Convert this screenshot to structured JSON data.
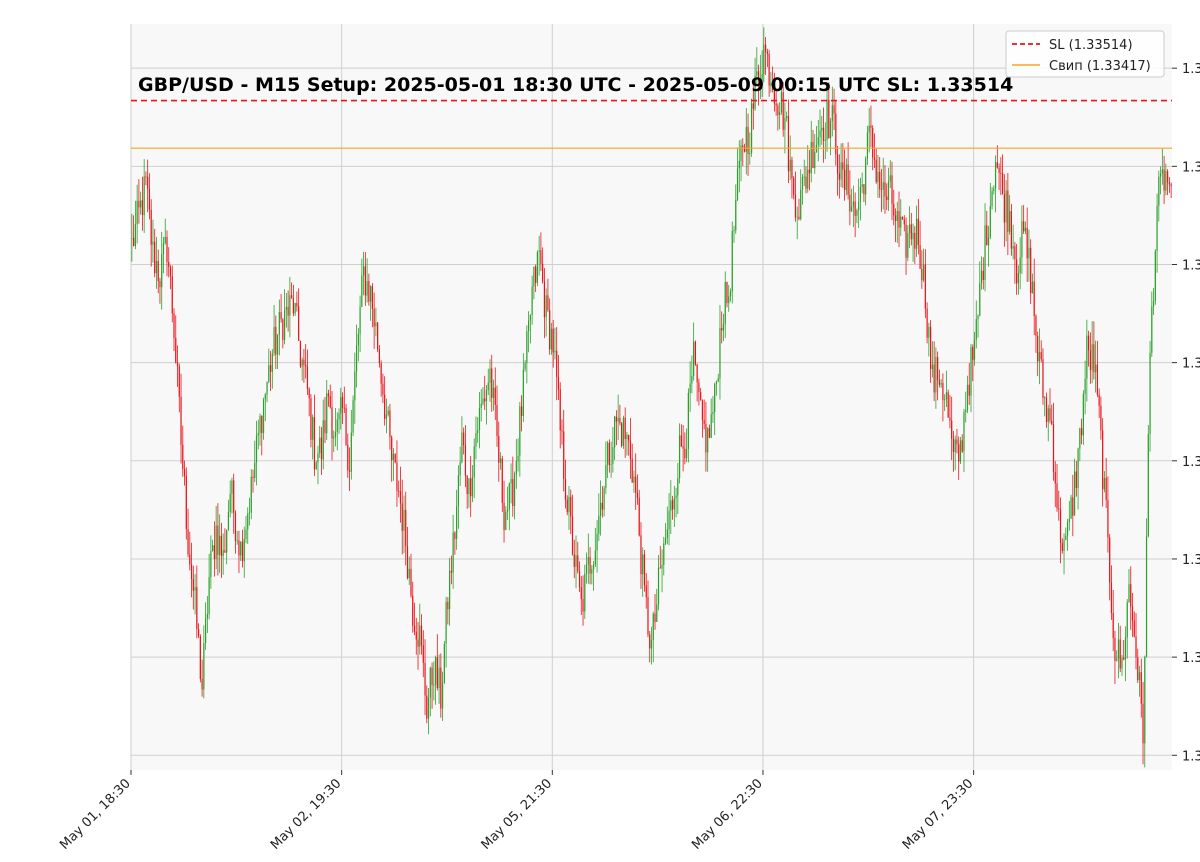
{
  "chart_data": {
    "type": "candlestick",
    "title": "GBP/USD - M15 Setup: 2025-05-01 18:30 UTC - 2025-05-09 00:15 UTC SL: 1.33514",
    "xlabel": "",
    "ylabel": "",
    "grid": true,
    "legend_position": "top-right",
    "x_tick_labels": [
      "May 01, 18:30",
      "May 02, 19:30",
      "May 05, 21:30",
      "May 06, 22:30",
      "May 07, 23:30"
    ],
    "y_tick_labels": [
      "1.3",
      "1.3",
      "1.3",
      "1.3",
      "1.3",
      "1.3",
      "1.3",
      "1.3"
    ],
    "ylim": [
      1.3215,
      1.3367
    ],
    "horizontal_lines": [
      {
        "name": "SL (1.33514)",
        "value": 1.33514,
        "color": "#e8141a",
        "style": "dashed"
      },
      {
        "name": "Свип (1.33417)",
        "value": 1.33417,
        "color": "#f5a623",
        "style": "solid"
      }
    ],
    "colors": {
      "up": "#2ca02c",
      "down": "#e8141a",
      "grid": "#cfcfcf",
      "plot_bg": "#f8f8f8"
    },
    "close_path": [
      [
        0,
        1.3322
      ],
      [
        4,
        1.3328
      ],
      [
        8,
        1.3334
      ],
      [
        12,
        1.332
      ],
      [
        16,
        1.3316
      ],
      [
        20,
        1.3322
      ],
      [
        24,
        1.3305
      ],
      [
        28,
        1.3282
      ],
      [
        32,
        1.3262
      ],
      [
        36,
        1.3248
      ],
      [
        40,
        1.3232
      ],
      [
        44,
        1.3254
      ],
      [
        48,
        1.3264
      ],
      [
        52,
        1.3258
      ],
      [
        56,
        1.3272
      ],
      [
        62,
        1.326
      ],
      [
        68,
        1.3272
      ],
      [
        74,
        1.3288
      ],
      [
        80,
        1.33
      ],
      [
        86,
        1.3307
      ],
      [
        92,
        1.331
      ],
      [
        96,
        1.33
      ],
      [
        100,
        1.3292
      ],
      [
        104,
        1.328
      ],
      [
        108,
        1.328
      ],
      [
        112,
        1.3292
      ],
      [
        116,
        1.3282
      ],
      [
        120,
        1.3288
      ],
      [
        124,
        1.3278
      ],
      [
        128,
        1.33
      ],
      [
        132,
        1.3316
      ],
      [
        136,
        1.3312
      ],
      [
        140,
        1.3302
      ],
      [
        144,
        1.329
      ],
      [
        148,
        1.3278
      ],
      [
        152,
        1.3272
      ],
      [
        156,
        1.3262
      ],
      [
        160,
        1.3248
      ],
      [
        164,
        1.3242
      ],
      [
        168,
        1.3228
      ],
      [
        172,
        1.3236
      ],
      [
        176,
        1.323
      ],
      [
        180,
        1.325
      ],
      [
        184,
        1.3264
      ],
      [
        188,
        1.3282
      ],
      [
        192,
        1.3272
      ],
      [
        196,
        1.3284
      ],
      [
        200,
        1.329
      ],
      [
        204,
        1.3296
      ],
      [
        208,
        1.3282
      ],
      [
        212,
        1.3268
      ],
      [
        216,
        1.327
      ],
      [
        220,
        1.3282
      ],
      [
        224,
        1.3296
      ],
      [
        228,
        1.3312
      ],
      [
        232,
        1.332
      ],
      [
        236,
        1.3308
      ],
      [
        240,
        1.3302
      ],
      [
        244,
        1.3284
      ],
      [
        248,
        1.327
      ],
      [
        252,
        1.3258
      ],
      [
        256,
        1.3248
      ],
      [
        260,
        1.3256
      ],
      [
        264,
        1.3262
      ],
      [
        268,
        1.3272
      ],
      [
        272,
        1.328
      ],
      [
        276,
        1.3286
      ],
      [
        280,
        1.3284
      ],
      [
        284,
        1.328
      ],
      [
        288,
        1.3268
      ],
      [
        292,
        1.325
      ],
      [
        296,
        1.324
      ],
      [
        300,
        1.3252
      ],
      [
        304,
        1.3262
      ],
      [
        308,
        1.327
      ],
      [
        312,
        1.328
      ],
      [
        316,
        1.3284
      ],
      [
        320,
        1.3298
      ],
      [
        324,
        1.3286
      ],
      [
        328,
        1.3282
      ],
      [
        332,
        1.329
      ],
      [
        336,
        1.3308
      ],
      [
        340,
        1.3312
      ],
      [
        344,
        1.333
      ],
      [
        348,
        1.3343
      ],
      [
        352,
        1.3345
      ],
      [
        356,
        1.3356
      ],
      [
        360,
        1.3362
      ],
      [
        364,
        1.3357
      ],
      [
        368,
        1.3352
      ],
      [
        372,
        1.3348
      ],
      [
        376,
        1.3334
      ],
      [
        380,
        1.333
      ],
      [
        384,
        1.3336
      ],
      [
        388,
        1.3342
      ],
      [
        392,
        1.3346
      ],
      [
        396,
        1.3348
      ],
      [
        400,
        1.3346
      ],
      [
        404,
        1.3335
      ],
      [
        408,
        1.3334
      ],
      [
        412,
        1.3328
      ],
      [
        416,
        1.3334
      ],
      [
        420,
        1.3344
      ],
      [
        424,
        1.3338
      ],
      [
        428,
        1.3332
      ],
      [
        432,
        1.3332
      ],
      [
        436,
        1.3326
      ],
      [
        440,
        1.3322
      ],
      [
        444,
        1.3325
      ],
      [
        448,
        1.3324
      ],
      [
        452,
        1.3312
      ],
      [
        456,
        1.3294
      ],
      [
        460,
        1.3296
      ],
      [
        464,
        1.329
      ],
      [
        468,
        1.3278
      ],
      [
        472,
        1.328
      ],
      [
        476,
        1.3294
      ],
      [
        480,
        1.33
      ],
      [
        484,
        1.3316
      ],
      [
        488,
        1.3328
      ],
      [
        492,
        1.334
      ],
      [
        496,
        1.3332
      ],
      [
        500,
        1.3328
      ],
      [
        504,
        1.3318
      ],
      [
        508,
        1.3324
      ],
      [
        512,
        1.3316
      ],
      [
        516,
        1.33
      ],
      [
        520,
        1.329
      ],
      [
        524,
        1.3285
      ],
      [
        528,
        1.3265
      ],
      [
        532,
        1.326
      ],
      [
        536,
        1.327
      ],
      [
        540,
        1.3282
      ],
      [
        544,
        1.33
      ],
      [
        548,
        1.3298
      ],
      [
        552,
        1.3282
      ],
      [
        556,
        1.326
      ],
      [
        560,
        1.324
      ],
      [
        564,
        1.3236
      ],
      [
        568,
        1.3252
      ],
      [
        572,
        1.324
      ],
      [
        576,
        1.3222
      ],
      [
        580,
        1.33
      ],
      [
        584,
        1.333
      ],
      [
        588,
        1.3336
      ],
      [
        592,
        1.3334
      ]
    ]
  }
}
